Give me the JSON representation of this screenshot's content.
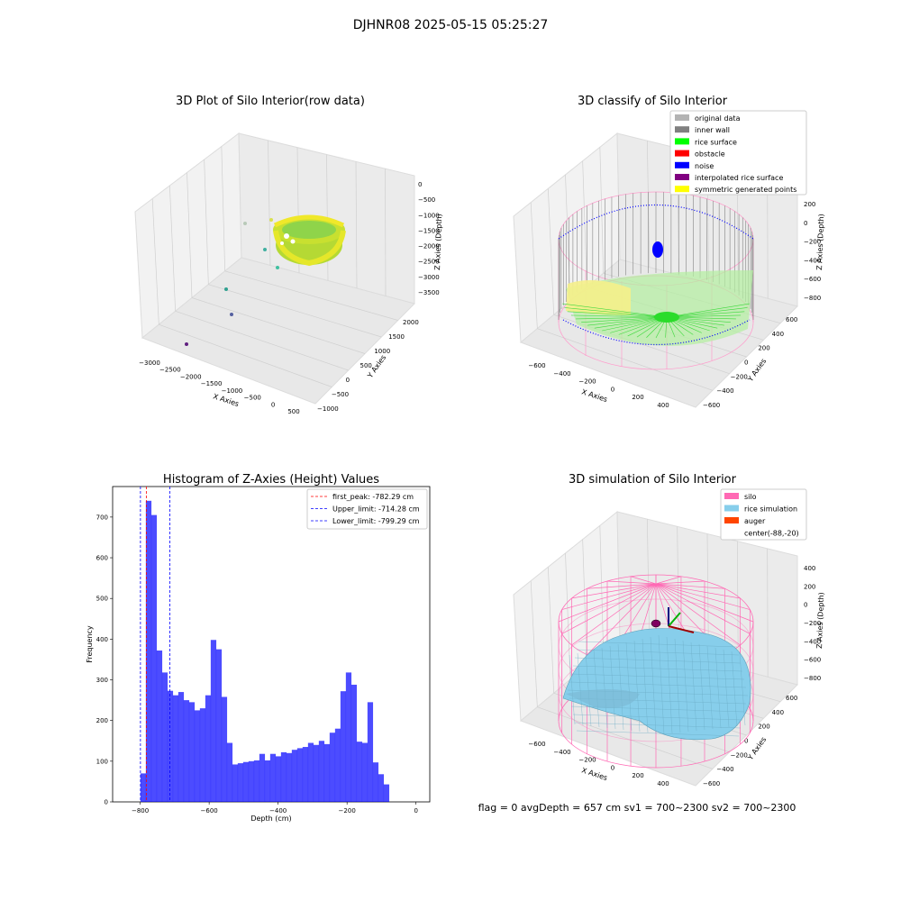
{
  "suptitle": "DJHNR08 2025-05-15 05:25:27",
  "colors": {
    "original": "#b3b3b3",
    "inner_wall": "#808080",
    "rice_surface": "#00ff00",
    "obstacle": "#ff0000",
    "noise": "#0000ff",
    "interp": "#800080",
    "symmetric": "#ffff00",
    "silo": "#ff69b4",
    "rice_sim": "#87ceeb",
    "auger": "#ff4500",
    "hist_bar": "#0000ff"
  },
  "panel1": {
    "title": "3D Plot of Silo Interior(row data)",
    "xlabel": "X Axies",
    "ylabel": "Y Axies",
    "zlabel": "Z Axies (Depth)",
    "xticks": [
      "−3000",
      "−2500",
      "−2000",
      "−1500",
      "−1000",
      "−500",
      "0",
      "500"
    ],
    "yticks": [
      "−1000",
      "−500",
      "0",
      "500",
      "1000",
      "1500",
      "2000"
    ],
    "zticks": [
      "0",
      "−500",
      "−1000",
      "−1500",
      "−2000",
      "−2500",
      "−3000",
      "−3500"
    ]
  },
  "panel2": {
    "title": "3D classify of Silo Interior",
    "xlabel": "X Axies",
    "ylabel": "Y Axies",
    "zlabel": "Z Axies (Depth)",
    "xticks": [
      "−600",
      "−400",
      "−200",
      "0",
      "200",
      "400"
    ],
    "yticks": [
      "−600",
      "−400",
      "−200",
      "0",
      "200",
      "400",
      "600"
    ],
    "zticks": [
      "200",
      "0",
      "−200",
      "−400",
      "−600",
      "−800"
    ],
    "legend": [
      {
        "label": "original data",
        "color": "#b3b3b3"
      },
      {
        "label": "inner wall",
        "color": "#808080"
      },
      {
        "label": "rice surface",
        "color": "#00ff00"
      },
      {
        "label": "obstacle",
        "color": "#ff0000"
      },
      {
        "label": "noise",
        "color": "#0000ff"
      },
      {
        "label": "interpolated rice surface",
        "color": "#800080"
      },
      {
        "label": "symmetric generated points",
        "color": "#ffff00"
      }
    ]
  },
  "panel3": {
    "title": "Histogram of Z-Axies (Height) Values",
    "xlabel": "Depth (cm)",
    "ylabel": "Frequency",
    "legend": [
      {
        "label": "first_peak: -782.29 cm",
        "color": "#ff0000"
      },
      {
        "label": "Upper_limit: -714.28 cm",
        "color": "#0000ff"
      },
      {
        "label": "Lower_limit: -799.29 cm",
        "color": "#0000ff"
      }
    ]
  },
  "panel4": {
    "title": "3D simulation of Silo Interior",
    "xlabel": "X Axies",
    "ylabel": "Y Axies",
    "zlabel": "Z Axies (Depth)",
    "xticks": [
      "−600",
      "−400",
      "−200",
      "0",
      "200",
      "400"
    ],
    "yticks": [
      "−600",
      "−400",
      "−200",
      "0",
      "200",
      "400",
      "600"
    ],
    "zticks": [
      "400",
      "200",
      "0",
      "−200",
      "−400",
      "−600",
      "−800"
    ],
    "legend": [
      {
        "label": "silo",
        "color": "#ff69b4"
      },
      {
        "label": "rice simulation",
        "color": "#87ceeb"
      },
      {
        "label": "auger",
        "color": "#ff4500"
      },
      {
        "label": "center(-88,-20)",
        "color": ""
      }
    ],
    "status": "flag = 0     avgDepth = 657 cm  sv1 = 700~2300  sv2 = 700~2300"
  },
  "chart_data": {
    "type": "bar",
    "title": "Histogram of Z-Axies (Height) Values",
    "xlabel": "Depth (cm)",
    "ylabel": "Frequency",
    "xlim": [
      -880,
      40
    ],
    "ylim": [
      0,
      775
    ],
    "xticks": [
      -800,
      -600,
      -400,
      -200,
      0
    ],
    "yticks": [
      0,
      100,
      200,
      300,
      400,
      500,
      600,
      700
    ],
    "bin_start": -799.3,
    "bin_width": 15.68,
    "values": [
      70,
      740,
      705,
      372,
      318,
      273,
      262,
      270,
      250,
      245,
      225,
      230,
      262,
      398,
      375,
      258,
      145,
      92,
      95,
      98,
      100,
      102,
      118,
      102,
      118,
      112,
      122,
      120,
      128,
      132,
      135,
      145,
      140,
      150,
      142,
      170,
      180,
      272,
      318,
      288,
      148,
      145,
      245,
      97,
      68,
      43
    ],
    "vlines": [
      {
        "x": -782.29,
        "label": "first_peak: -782.29 cm",
        "color": "#ff0000"
      },
      {
        "x": -714.28,
        "label": "Upper_limit: -714.28 cm",
        "color": "#0000ff"
      },
      {
        "x": -799.29,
        "label": "Lower_limit: -799.29 cm",
        "color": "#0000ff"
      }
    ]
  }
}
